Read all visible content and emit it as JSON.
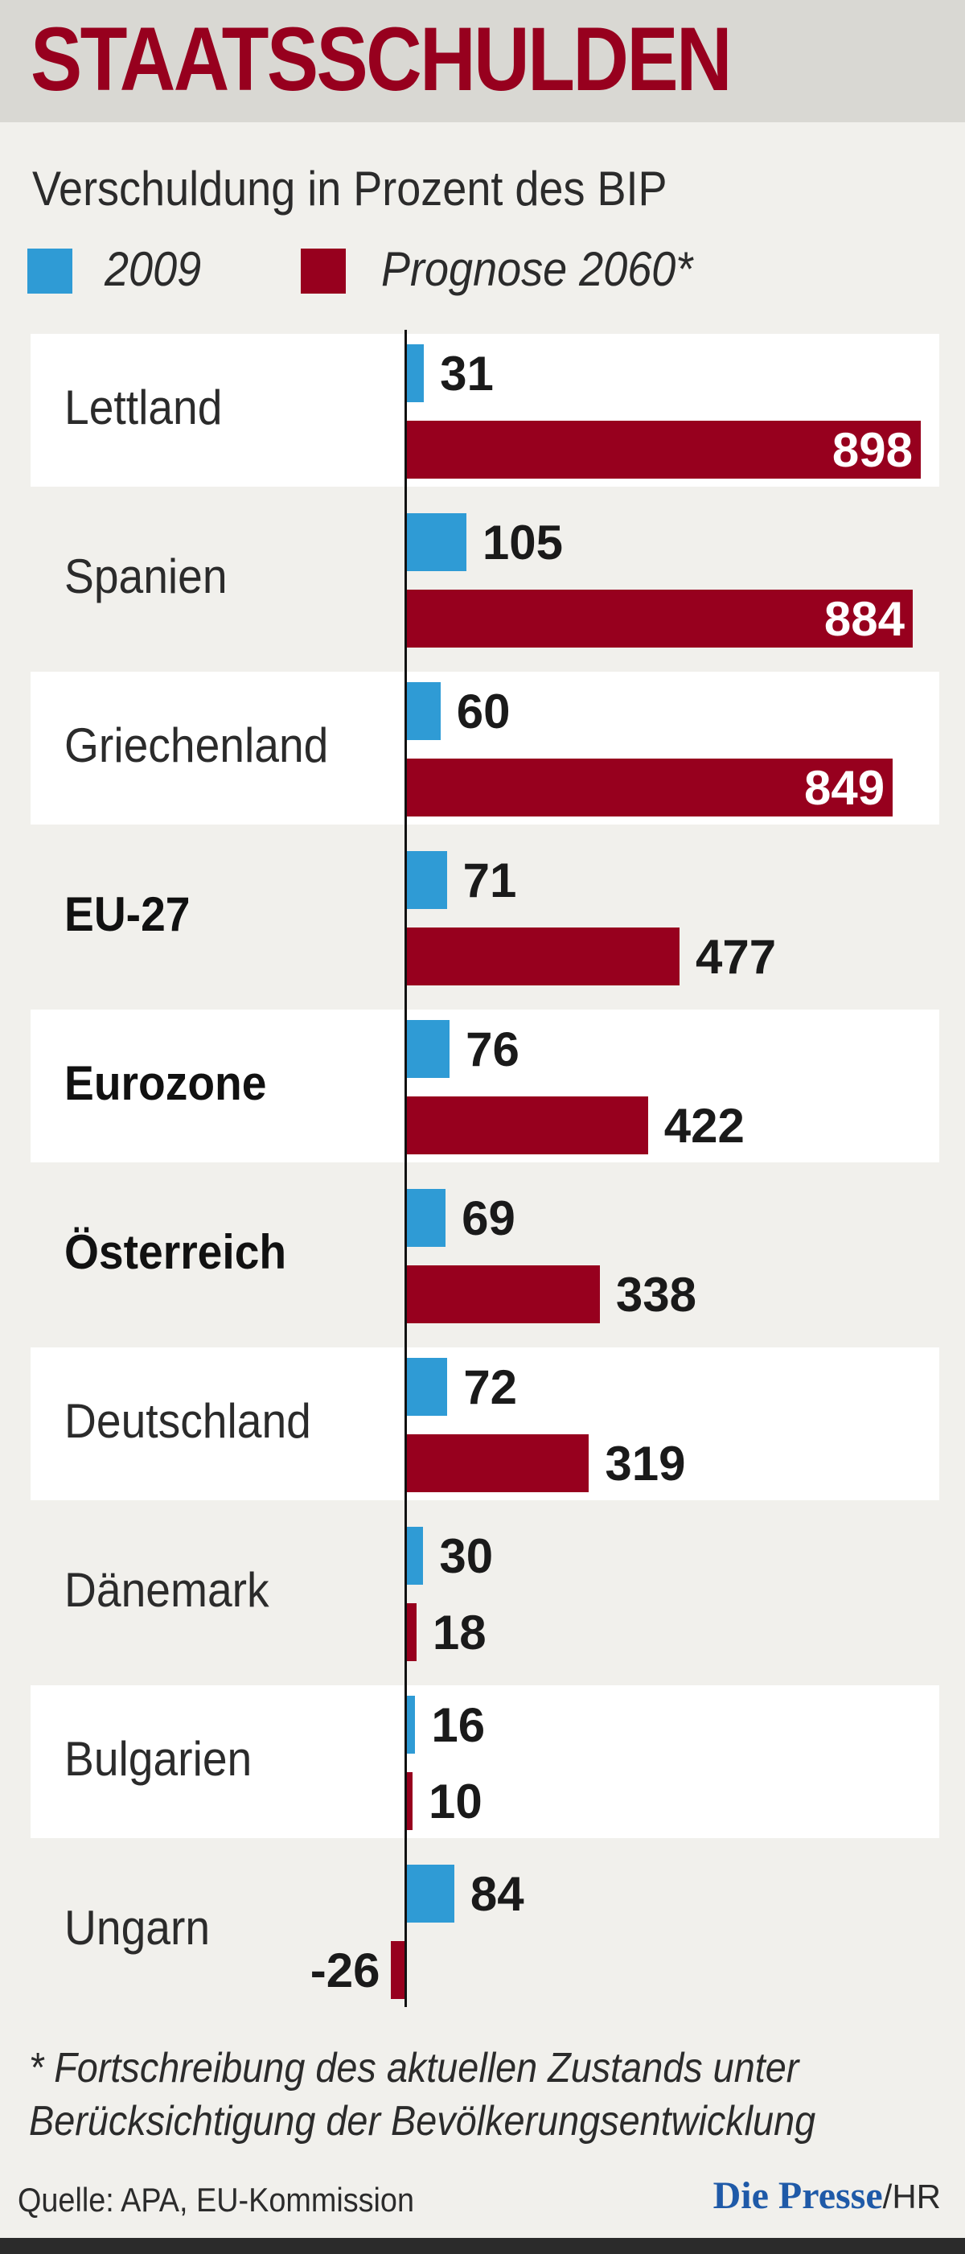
{
  "header": {
    "title": "STAATSSCHULDEN"
  },
  "chart_data": {
    "type": "bar",
    "orientation": "horizontal",
    "title": "STAATSSCHULDEN",
    "subtitle": "Verschuldung in Prozent des BIP",
    "categories": [
      "Lettland",
      "Spanien",
      "Griechenland",
      "EU-27",
      "Eurozone",
      "Österreich",
      "Deutschland",
      "Dänemark",
      "Bulgarien",
      "Ungarn"
    ],
    "bold_categories": [
      "EU-27",
      "Eurozone",
      "Österreich"
    ],
    "series": [
      {
        "name": "2009",
        "color": "#2f9bd5",
        "values": [
          31,
          105,
          60,
          71,
          76,
          69,
          72,
          30,
          16,
          84
        ]
      },
      {
        "name": "Prognose 2060*",
        "color": "#97001e",
        "values": [
          898,
          884,
          849,
          477,
          422,
          338,
          319,
          18,
          10,
          -26
        ]
      }
    ],
    "xlim": [
      -26,
      898
    ],
    "grid": false,
    "legend_position": "top-left"
  },
  "footnote": {
    "line1": "* Fortschreibung des aktuellen Zustands unter",
    "line2": "Berücksichtigung der Bevölkerungsentwicklung"
  },
  "source": "Quelle: APA, EU-Kommission",
  "brand": {
    "name": "Die Presse",
    "suffix": "/HR"
  }
}
